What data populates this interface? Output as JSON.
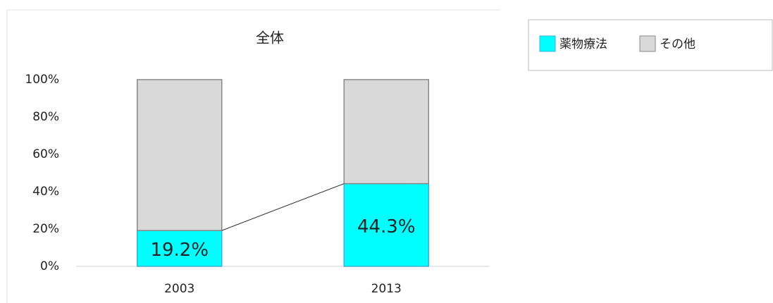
{
  "chart_data": {
    "type": "stacked_bar",
    "title": "全体",
    "categories": [
      "2003",
      "2013"
    ],
    "series": [
      {
        "name": "薬物療法",
        "color": "#00ffff",
        "values": [
          19.2,
          44.3
        ],
        "value_labels": [
          "19.2%",
          "44.3%"
        ]
      },
      {
        "name": "その他",
        "color": "#d9d9d9",
        "values": [
          80.8,
          55.7
        ]
      }
    ],
    "ylim": [
      0,
      100
    ],
    "yticks": [
      {
        "value": 0,
        "label": "0%"
      },
      {
        "value": 20,
        "label": "20%"
      },
      {
        "value": 40,
        "label": "40%"
      },
      {
        "value": 60,
        "label": "60%"
      },
      {
        "value": 80,
        "label": "80%"
      },
      {
        "value": 100,
        "label": "100%"
      }
    ],
    "grid": false,
    "series_lines": true,
    "legend": "top-right"
  }
}
